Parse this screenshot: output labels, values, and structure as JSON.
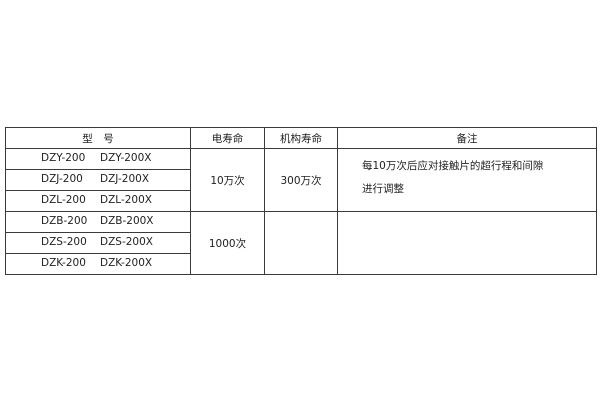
{
  "headers": {
    "model": "型　号",
    "electrical_life": "电寿命",
    "mechanical_life": "机构寿命",
    "remarks": "备注"
  },
  "rows": [
    {
      "model_a": "DZY-200",
      "model_b": "DZY-200X"
    },
    {
      "model_a": "DZJ-200",
      "model_b": "DZJ-200X"
    },
    {
      "model_a": "DZL-200",
      "model_b": "DZL-200X"
    },
    {
      "model_a": "DZB-200",
      "model_b": "DZB-200X"
    },
    {
      "model_a": "DZS-200",
      "model_b": "DZS-200X"
    },
    {
      "model_a": "DZK-200",
      "model_b": "DZK-200X"
    }
  ],
  "groups": [
    {
      "electrical_life": "10万次",
      "mechanical_life": "300万次",
      "remarks_line1": "每10万次后应对接触片的超行程和间隙",
      "remarks_line2": "进行调整"
    },
    {
      "electrical_life": "1000次",
      "mechanical_life": "",
      "remarks_line1": "",
      "remarks_line2": ""
    }
  ]
}
